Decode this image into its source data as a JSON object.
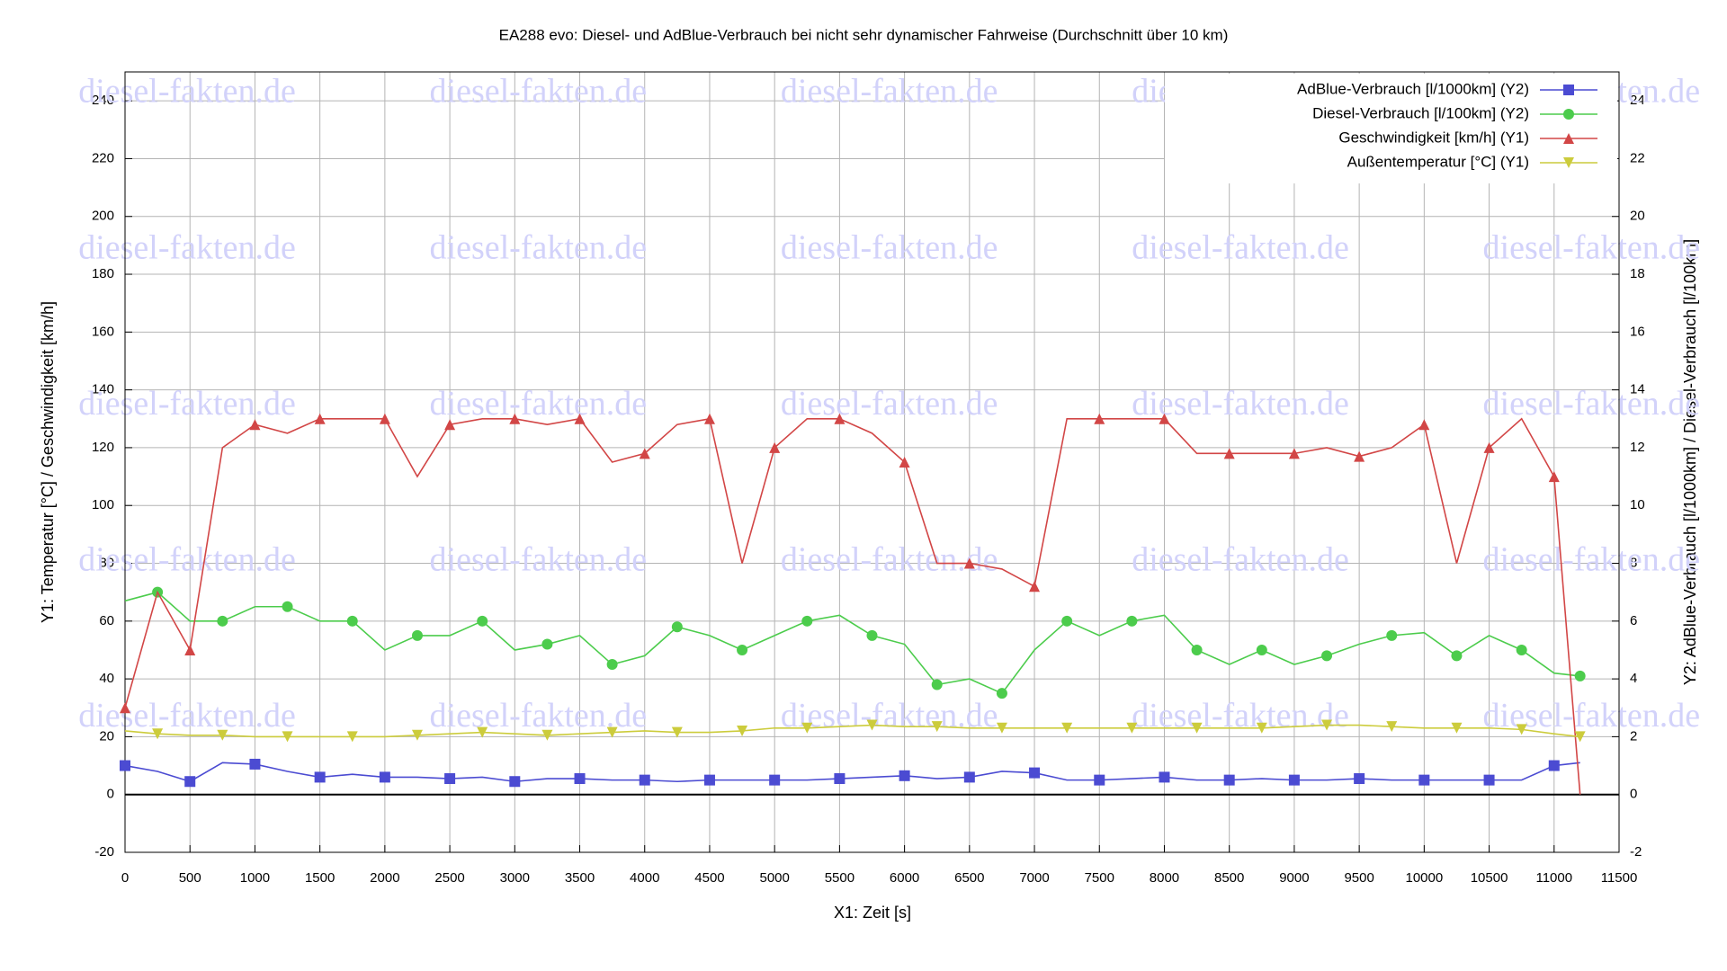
{
  "chart_data": {
    "type": "line",
    "title": "EA288 evo: Diesel- und AdBlue-Verbrauch bei nicht sehr dynamischer Fahrweise (Durchschnitt über 10 km)",
    "xlabel": "X1: Zeit [s]",
    "ylabel": "Y1: Temperatur [°C] / Geschwindigkeit [km/h]",
    "y2label": "Y2: AdBlue-Verbrauch [l/1000km] / Diesel-Verbrauch [l/100km]",
    "watermark": "diesel-fakten.de",
    "grid": true,
    "legend": "upper right",
    "xlim": [
      0,
      11500
    ],
    "xticks": [
      0,
      500,
      1000,
      1500,
      2000,
      2500,
      3000,
      3500,
      4000,
      4500,
      5000,
      5500,
      6000,
      6500,
      7000,
      7500,
      8000,
      8500,
      9000,
      9500,
      10000,
      10500,
      11000,
      11500
    ],
    "ylim": [
      -20,
      250
    ],
    "yticks": [
      -20,
      0,
      20,
      40,
      60,
      80,
      100,
      120,
      140,
      160,
      180,
      200,
      220,
      240
    ],
    "y2lim": [
      -2,
      25
    ],
    "y2ticks": [
      -2,
      0,
      2,
      4,
      6,
      8,
      10,
      12,
      14,
      16,
      18,
      20,
      22,
      24
    ],
    "x": [
      0,
      250,
      500,
      750,
      1000,
      1250,
      1500,
      1750,
      2000,
      2250,
      2500,
      2750,
      3000,
      3250,
      3500,
      3750,
      4000,
      4250,
      4500,
      4750,
      5000,
      5250,
      5500,
      5750,
      6000,
      6250,
      6500,
      6750,
      7000,
      7250,
      7500,
      7750,
      8000,
      8250,
      8500,
      8750,
      9000,
      9250,
      9500,
      9750,
      10000,
      10250,
      10500,
      10750,
      11000,
      11200
    ],
    "series": [
      {
        "name": "AdBlue-Verbrauch [l/1000km] (Y2)",
        "color": "#4b4bd2",
        "marker": "square",
        "axis": "y2",
        "values": [
          1.0,
          0.8,
          0.45,
          1.1,
          1.05,
          0.8,
          0.6,
          0.7,
          0.6,
          0.6,
          0.55,
          0.6,
          0.45,
          0.55,
          0.55,
          0.5,
          0.5,
          0.45,
          0.5,
          0.5,
          0.5,
          0.5,
          0.55,
          0.6,
          0.65,
          0.55,
          0.6,
          0.8,
          0.75,
          0.5,
          0.5,
          0.55,
          0.6,
          0.5,
          0.5,
          0.55,
          0.5,
          0.5,
          0.55,
          0.5,
          0.5,
          0.5,
          0.5,
          0.5,
          1.0,
          1.1
        ]
      },
      {
        "name": "Diesel-Verbrauch [l/100km] (Y2)",
        "color": "#4ccc4c",
        "marker": "circle",
        "axis": "y2",
        "values": [
          6.7,
          7.0,
          6.0,
          6.0,
          6.5,
          6.5,
          6.0,
          6.0,
          5.0,
          5.5,
          5.5,
          6.0,
          5.0,
          5.2,
          5.5,
          4.5,
          4.8,
          5.8,
          5.5,
          5.0,
          5.5,
          6.0,
          6.2,
          5.5,
          5.2,
          3.8,
          4.0,
          3.5,
          5.0,
          6.0,
          5.5,
          6.0,
          6.2,
          5.0,
          4.5,
          5.0,
          4.5,
          4.8,
          5.2,
          5.5,
          5.6,
          4.8,
          5.5,
          5.0,
          4.2,
          4.1
        ]
      },
      {
        "name": "Geschwindigkeit [km/h] (Y1)",
        "color": "#d24646",
        "marker": "triangle-up",
        "values": [
          30,
          70,
          50,
          120,
          128,
          125,
          130,
          130,
          130,
          110,
          128,
          130,
          130,
          128,
          130,
          115,
          118,
          128,
          130,
          80,
          120,
          130,
          130,
          125,
          115,
          80,
          80,
          78,
          72,
          130,
          130,
          130,
          130,
          118,
          118,
          118,
          118,
          120,
          117,
          120,
          128,
          80,
          120,
          130,
          110,
          0
        ]
      },
      {
        "name": "Außentemperatur [°C] (Y1)",
        "color": "#cccc3c",
        "marker": "triangle-down",
        "values": [
          22,
          21,
          20.5,
          20.5,
          20,
          20,
          20,
          20,
          20,
          20.5,
          21,
          21.5,
          21,
          20.5,
          21,
          21.5,
          22,
          21.5,
          21.5,
          22,
          23,
          23,
          23.5,
          24,
          23.5,
          23.5,
          23,
          23,
          23,
          23,
          23,
          23,
          23,
          23,
          23,
          23,
          23.5,
          24,
          24,
          23.5,
          23,
          23,
          23,
          22.5,
          21,
          20
        ]
      }
    ]
  }
}
